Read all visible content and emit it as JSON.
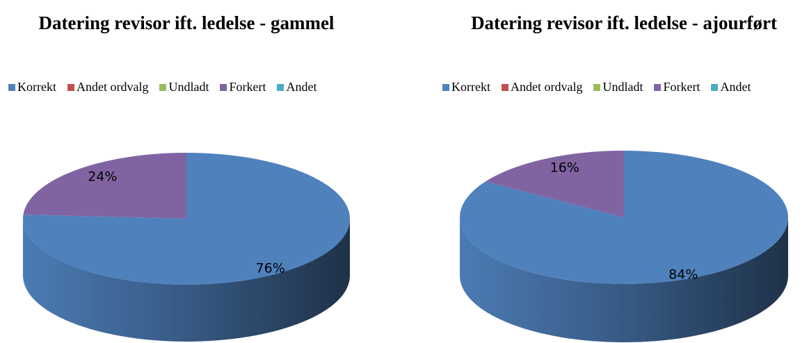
{
  "chart_data": [
    {
      "type": "pie",
      "title": "Datering revisor ift. ledelse - gammel",
      "categories": [
        "Korrekt",
        "Andet ordvalg",
        "Undladt",
        "Forkert",
        "Andet"
      ],
      "values": [
        76,
        0,
        0,
        24,
        0
      ],
      "value_labels": [
        "76%",
        null,
        null,
        "24%",
        null
      ],
      "colors": [
        "#4f81bd",
        "#c0504d",
        "#9bbb59",
        "#8064a2",
        "#4bacc6"
      ],
      "legend": "top"
    },
    {
      "type": "pie",
      "title": "Datering revisor ift. ledelse - ajourført",
      "categories": [
        "Korrekt",
        "Andet ordvalg",
        "Undladt",
        "Forkert",
        "Andet"
      ],
      "values": [
        84,
        0,
        0,
        16,
        0
      ],
      "value_labels": [
        "84%",
        null,
        null,
        "16%",
        null
      ],
      "colors": [
        "#4f81bd",
        "#c0504d",
        "#9bbb59",
        "#8064a2",
        "#4bacc6"
      ],
      "legend": "top"
    }
  ]
}
